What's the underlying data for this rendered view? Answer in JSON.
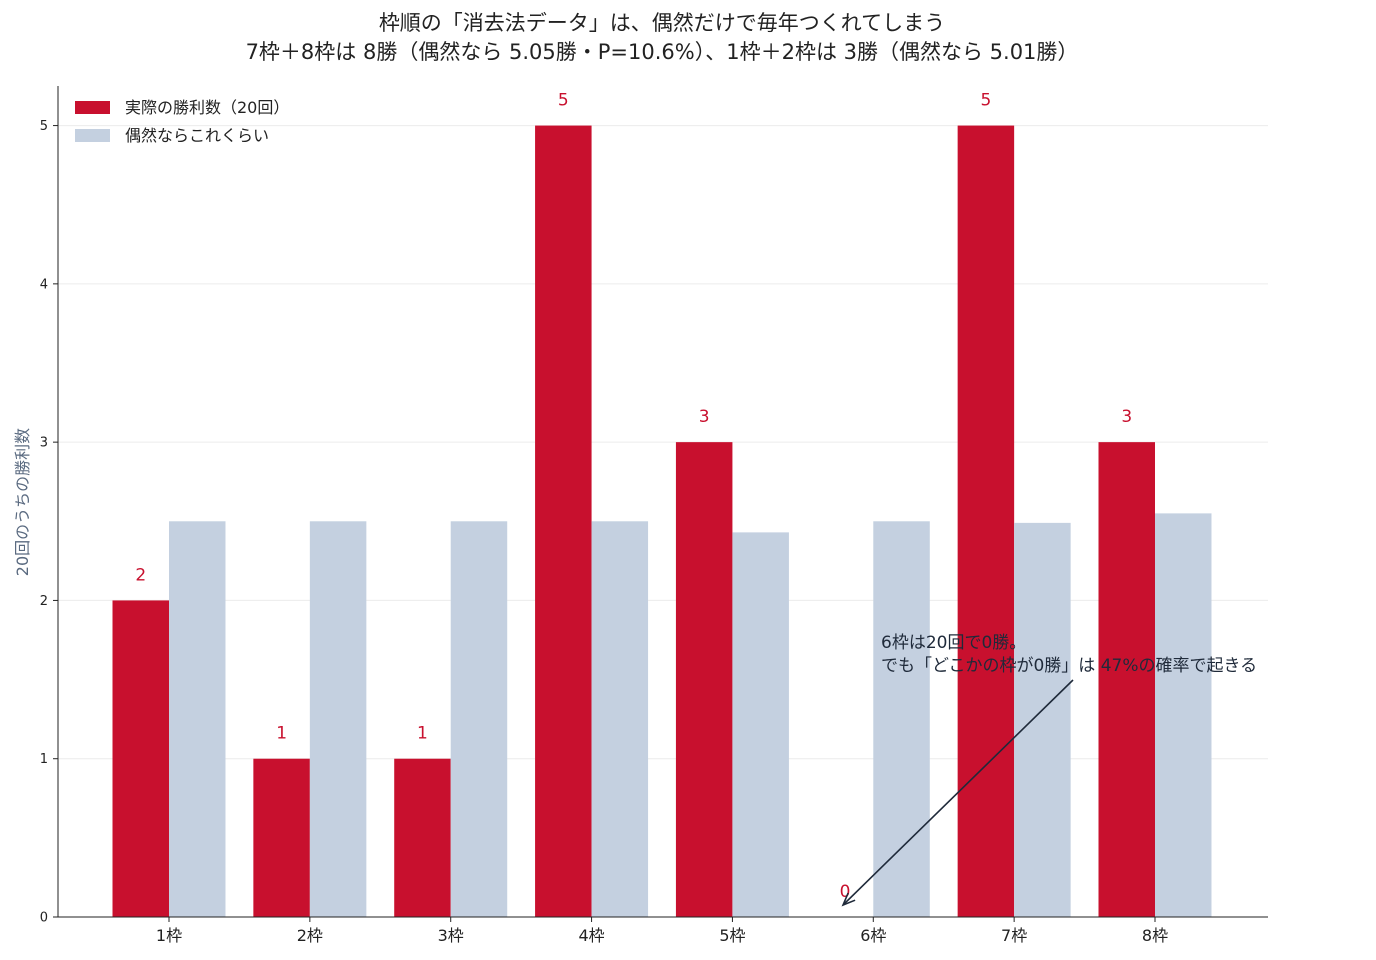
{
  "chart_data": {
    "type": "bar",
    "title": "枠順の「消去法データ」は、偶然だけで毎年つくれてしまう",
    "subtitle": "7枠＋8枠は 8勝（偶然なら 5.05勝・P=10.6%）、1枠＋2枠は 3勝（偶然なら 5.01勝）",
    "xlabel": "",
    "ylabel": "20回のうちの勝利数",
    "categories": [
      "1枠",
      "2枠",
      "3枠",
      "4枠",
      "5枠",
      "6枠",
      "7枠",
      "8枠"
    ],
    "ylim": [
      0,
      5.25
    ],
    "yticks": [
      "0",
      "1",
      "2",
      "3",
      "4",
      "5"
    ],
    "grid": "horizontal",
    "legend_position": "top-left",
    "series": [
      {
        "name": "実際の勝利数（20回）",
        "color": "#c8102e",
        "values": [
          2,
          1,
          1,
          5,
          3,
          0,
          5,
          3
        ],
        "labels": [
          "2",
          "1",
          "1",
          "5",
          "3",
          "0",
          "5",
          "3"
        ]
      },
      {
        "name": "偶然ならこれくらい",
        "color": "#c4d0e0",
        "values": [
          2.5,
          2.5,
          2.5,
          2.5,
          2.43,
          2.5,
          2.49,
          2.55
        ]
      }
    ],
    "annotation": {
      "lines": [
        "6枠は20回で0勝。",
        "でも「どこかの枠が0勝」は 47%の確率で起きる"
      ],
      "target_category": "6枠",
      "target_value": 0,
      "text_at": {
        "category": "7枠",
        "value": 1.5
      }
    }
  }
}
